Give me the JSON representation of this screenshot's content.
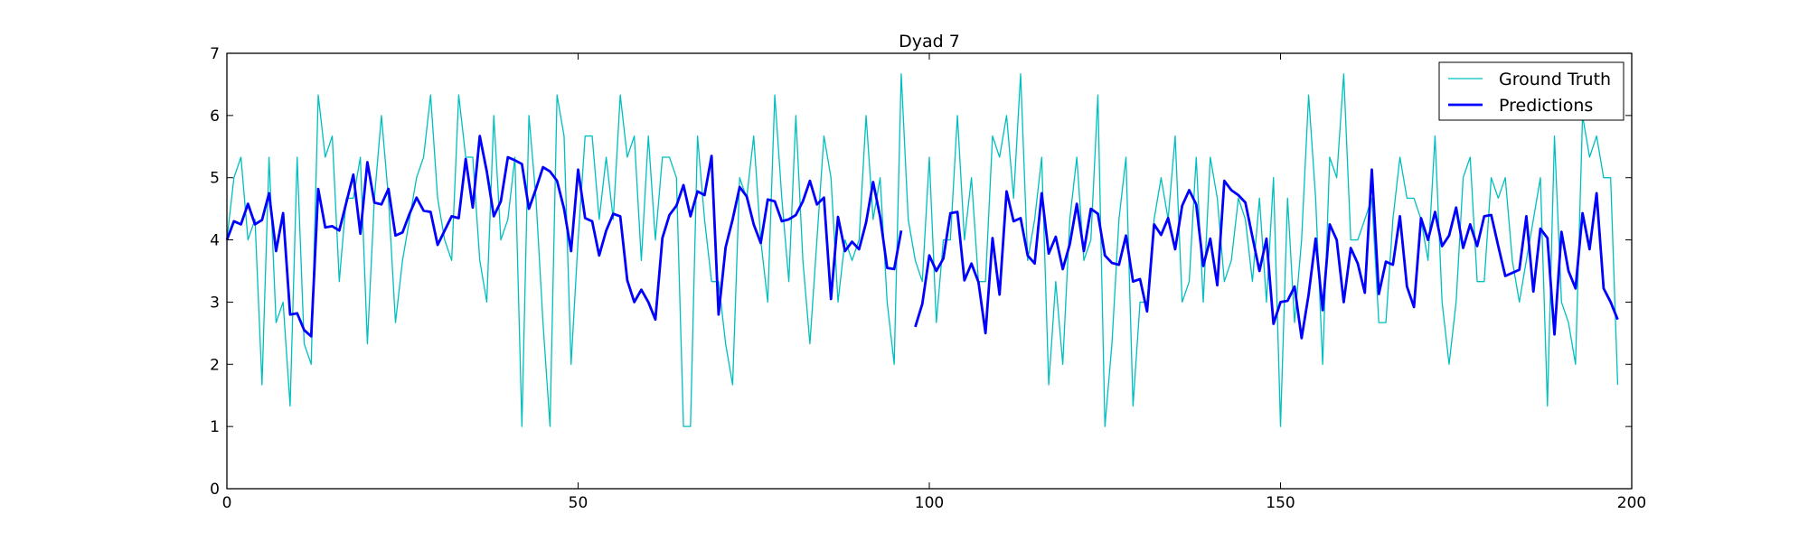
{
  "chart_data": {
    "type": "line",
    "title": "Dyad 7",
    "xlabel": "",
    "ylabel": "",
    "xlim": [
      0,
      200
    ],
    "ylim": [
      0,
      7
    ],
    "xticks": [
      "0",
      "50",
      "100",
      "150",
      "200"
    ],
    "yticks": [
      "0",
      "1",
      "2",
      "3",
      "4",
      "5",
      "6",
      "7"
    ],
    "grid": false,
    "legend_position": "top-right",
    "series": [
      {
        "name": "Ground Truth",
        "color": "#00bfbf",
        "style": "thin",
        "x_start": 0,
        "values": [
          4.0,
          5.0,
          5.33,
          4.0,
          4.33,
          1.67,
          5.33,
          2.67,
          3.0,
          1.33,
          5.33,
          2.33,
          2.0,
          6.33,
          5.33,
          5.67,
          3.33,
          4.67,
          4.67,
          5.33,
          2.33,
          4.67,
          6.0,
          4.67,
          2.67,
          3.67,
          4.33,
          5.0,
          5.33,
          6.33,
          4.67,
          4.0,
          3.67,
          6.33,
          5.33,
          5.33,
          3.67,
          3.0,
          6.0,
          4.0,
          4.33,
          5.33,
          1.0,
          6.0,
          4.67,
          2.67,
          1.0,
          6.33,
          5.67,
          2.0,
          4.0,
          5.67,
          5.67,
          4.33,
          5.33,
          4.33,
          6.33,
          5.33,
          5.67,
          3.67,
          5.67,
          4.0,
          5.33,
          5.33,
          5.0,
          1.0,
          1.0,
          5.67,
          4.33,
          3.33,
          3.33,
          2.33,
          1.67,
          5.0,
          4.67,
          5.67,
          4.0,
          3.0,
          6.33,
          4.67,
          3.33,
          6.0,
          3.67,
          2.33,
          4.0,
          5.67,
          5.0,
          3.0,
          4.0,
          3.67,
          4.0,
          6.0,
          4.33,
          5.0,
          3.0,
          2.0,
          6.67,
          4.33,
          3.67,
          3.33,
          5.33,
          2.67,
          4.0,
          4.0,
          6.0,
          4.0,
          5.0,
          3.33,
          3.33,
          5.67,
          5.33,
          6.0,
          4.67,
          6.67,
          3.67,
          4.33,
          5.33,
          1.67,
          3.33,
          2.0,
          4.33,
          5.33,
          3.67,
          4.0,
          6.33,
          1.0,
          2.33,
          4.33,
          5.33,
          1.33,
          3.0,
          3.0,
          4.33,
          5.0,
          4.33,
          5.67,
          3.0,
          3.33,
          5.33,
          3.0,
          5.33,
          4.67,
          3.33,
          3.67,
          4.67,
          4.33,
          3.33,
          4.67,
          3.0,
          5.0,
          1.0,
          4.67,
          2.67,
          4.0,
          6.33,
          4.67,
          2.0,
          5.33,
          5.0,
          6.67,
          4.0,
          4.0,
          4.33,
          4.67,
          2.67,
          2.67,
          4.33,
          5.33,
          4.67,
          4.67,
          4.33,
          3.67,
          5.67,
          3.0,
          2.0,
          3.0,
          5.0,
          5.33,
          3.33,
          3.33,
          5.0,
          4.67,
          5.0,
          3.67,
          3.0,
          3.67,
          4.33,
          5.0,
          1.33,
          5.67,
          3.0,
          2.67,
          2.0,
          6.0,
          5.33,
          5.67,
          5.0,
          5.0,
          1.67
        ]
      },
      {
        "name": "Predictions",
        "color": "#0000ff",
        "style": "thick",
        "x_start": 0,
        "values": [
          4.0,
          4.3,
          4.25,
          4.58,
          4.25,
          4.32,
          4.75,
          3.82,
          4.43,
          2.8,
          2.82,
          2.55,
          2.45,
          4.82,
          4.2,
          4.22,
          4.15,
          4.6,
          5.05,
          4.1,
          5.25,
          4.6,
          4.57,
          4.82,
          4.07,
          4.12,
          4.42,
          4.68,
          4.47,
          4.45,
          3.92,
          4.15,
          4.38,
          4.35,
          5.3,
          4.52,
          5.67,
          5.1,
          4.38,
          4.62,
          5.33,
          5.28,
          5.22,
          4.5,
          4.82,
          5.17,
          5.1,
          4.95,
          4.5,
          3.82,
          5.13,
          4.35,
          4.3,
          3.75,
          4.15,
          4.42,
          4.38,
          3.35,
          3.0,
          3.2,
          3.0,
          2.72,
          4.03,
          4.4,
          4.55,
          4.88,
          4.38,
          4.78,
          4.72,
          5.35,
          2.8,
          3.88,
          4.33,
          4.85,
          4.7,
          4.25,
          3.95,
          4.65,
          4.62,
          4.3,
          4.33,
          4.4,
          4.62,
          4.95,
          4.57,
          4.68,
          3.05,
          4.37,
          3.82,
          3.97,
          3.85,
          4.28,
          4.93,
          4.37,
          3.55,
          3.53,
          4.15,
          null,
          2.6,
          2.97,
          3.75,
          3.5,
          3.7,
          4.43,
          4.45,
          3.35,
          3.62,
          3.32,
          2.5,
          4.03,
          3.12,
          4.78,
          4.3,
          4.35,
          3.75,
          3.62,
          4.75,
          3.78,
          4.05,
          3.53,
          3.93,
          4.58,
          3.82,
          4.5,
          4.42,
          3.75,
          3.63,
          3.6,
          4.07,
          3.33,
          3.37,
          2.85,
          4.25,
          4.08,
          4.35,
          3.85,
          4.55,
          4.8,
          4.57,
          3.58,
          4.02,
          3.27,
          4.95,
          4.8,
          4.72,
          4.6,
          4.05,
          3.5,
          4.02,
          2.65,
          3.0,
          3.02,
          3.25,
          2.42,
          3.12,
          4.02,
          2.87,
          4.25,
          4.0,
          3.0,
          3.87,
          3.62,
          3.15,
          5.13,
          3.13,
          3.65,
          3.6,
          4.38,
          3.25,
          2.92,
          4.35,
          4.0,
          4.45,
          3.9,
          4.07,
          4.52,
          3.87,
          4.25,
          3.9,
          4.38,
          4.4,
          3.9,
          3.42,
          3.47,
          3.52,
          4.38,
          3.17,
          4.18,
          4.03,
          2.48,
          4.13,
          3.5,
          3.22,
          4.43,
          3.85,
          4.75,
          3.22,
          3.0,
          2.72
        ]
      }
    ]
  }
}
